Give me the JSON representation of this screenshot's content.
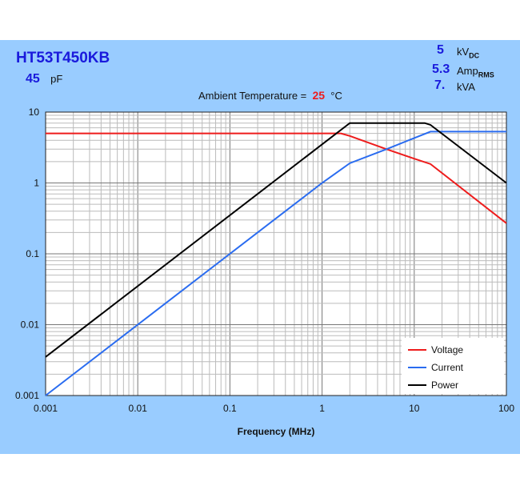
{
  "header": {
    "part": "HT53T450KB",
    "capacitance": "45",
    "capacitance_unit": "pF",
    "voltage": "5",
    "voltage_unit": "kV",
    "voltage_sub": "DC",
    "current": "5.3",
    "current_unit": "Amp",
    "current_sub": "RMS",
    "power": "7.",
    "power_unit": "kVA",
    "ambient_label": "Ambient Temperature =",
    "ambient_value": "25",
    "ambient_unit": "°C"
  },
  "chart_data": {
    "type": "line",
    "xscale": "log",
    "yscale": "log",
    "xlabel": "Frequency (MHz)",
    "ylabel": "",
    "xlim": [
      0.001,
      100
    ],
    "ylim": [
      0.001,
      10
    ],
    "xticks": [
      "0.001",
      "0.01",
      "0.1",
      "1",
      "10",
      "100"
    ],
    "yticks": [
      "0.001",
      "0.01",
      "0.1",
      "1",
      "10"
    ],
    "grid": true,
    "legend": "bottom-right",
    "colors": {
      "Voltage": "#ee1c1c",
      "Current": "#2a6cf0",
      "Power": "#000000"
    },
    "series": [
      {
        "name": "Voltage",
        "x": [
          0.001,
          1.6,
          2,
          5,
          10,
          15,
          100
        ],
        "y": [
          5,
          5,
          4.6,
          3.0,
          2.2,
          1.85,
          0.27
        ]
      },
      {
        "name": "Current",
        "x": [
          0.001,
          1,
          2,
          5,
          10,
          15,
          100
        ],
        "y": [
          0.001,
          1,
          1.9,
          3.0,
          4.3,
          5.3,
          5.3
        ]
      },
      {
        "name": "Power",
        "x": [
          0.001,
          1,
          2,
          13,
          15,
          100
        ],
        "y": [
          0.0035,
          3.5,
          7,
          7,
          6.6,
          1
        ]
      }
    ]
  }
}
